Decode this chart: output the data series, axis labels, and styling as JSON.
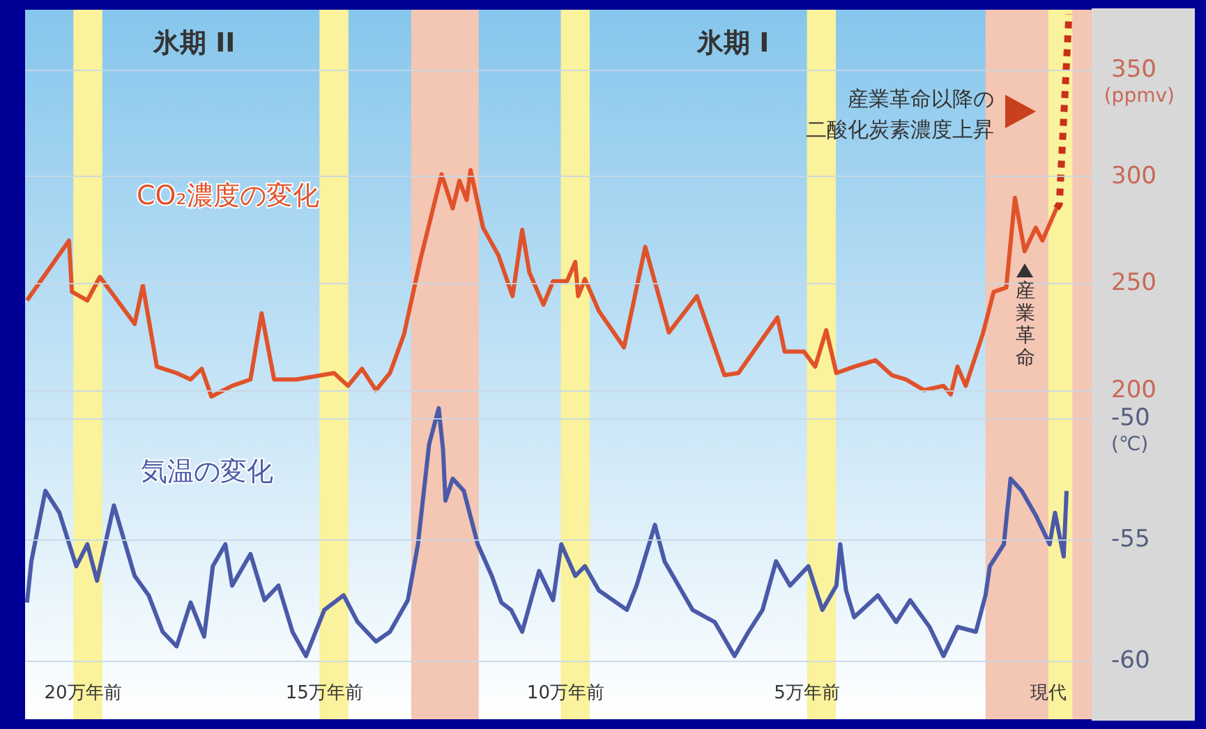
{
  "chart_data": {
    "type": "line",
    "ylabel": "(ppmv)",
    "y2label": "(℃)",
    "xlim": [
      21.2,
      -0.9
    ],
    "xticks": [
      {
        "value": 20,
        "label": "20万年前"
      },
      {
        "value": 15,
        "label": "15万年前"
      },
      {
        "value": 10,
        "label": "10万年前"
      },
      {
        "value": 5,
        "label": "5万年前"
      },
      {
        "value": 0,
        "label": "現代"
      }
    ],
    "ylim": [
      46,
      378
    ],
    "yticks": [
      200,
      250,
      300,
      350
    ],
    "y2lim": [
      -62.4,
      -33.2
    ],
    "y2ticks": [
      -60,
      -55,
      -50
    ],
    "grid": "y",
    "marker": "none",
    "line_style": "solid",
    "series": [
      {
        "name": "CO₂濃度の変化",
        "color": "#e0522a",
        "x": [
          21.16,
          20.29,
          20.23,
          19.91,
          19.65,
          18.93,
          18.76,
          18.47,
          18.06,
          17.77,
          17.54,
          17.34,
          16.91,
          16.53,
          16.3,
          16.04,
          15.58,
          14.8,
          14.51,
          14.22,
          13.93,
          13.64,
          13.35,
          13.01,
          12.57,
          12.34,
          12.2,
          12.05,
          11.97,
          11.71,
          11.39,
          11.1,
          10.9,
          10.75,
          10.46,
          10.26,
          9.97,
          9.8,
          9.74,
          9.6,
          9.31,
          8.79,
          8.35,
          7.86,
          7.28,
          6.71,
          6.42,
          5.61,
          5.46,
          5.06,
          4.83,
          4.6,
          4.39,
          4.02,
          3.58,
          3.24,
          2.95,
          2.57,
          2.17,
          2.02,
          1.88,
          1.71,
          1.36,
          1.13,
          0.87,
          0.69,
          0.49,
          0.26,
          0.12,
          -0.17
        ],
        "values": [
          242,
          270,
          246,
          242,
          253,
          231,
          249,
          211,
          208,
          205,
          210,
          197,
          202,
          205,
          236,
          205,
          205,
          208,
          202,
          210,
          200,
          208,
          226,
          261,
          301,
          285,
          298,
          289,
          303,
          276,
          263,
          244,
          275,
          255,
          240,
          251,
          251,
          260,
          244,
          252,
          237,
          220,
          267,
          227,
          244,
          207,
          208,
          234,
          218,
          218,
          211,
          228,
          208,
          211,
          214,
          207,
          205,
          200,
          202,
          198,
          211,
          202,
          226,
          246,
          248,
          290,
          265,
          276,
          270,
          285
        ]
      },
      {
        "color": "#c8301a",
        "line_style": "dotted",
        "x": [
          -0.17,
          -0.23,
          -0.43
        ],
        "values": [
          285,
          287,
          376
        ]
      },
      {
        "name": "気温の変化",
        "color": "#4a5aa8",
        "axis": "y2",
        "x": [
          21.16,
          21.07,
          20.78,
          20.49,
          20.14,
          19.91,
          19.71,
          19.36,
          18.93,
          18.64,
          18.35,
          18.06,
          17.77,
          17.49,
          17.31,
          17.05,
          16.91,
          16.53,
          16.24,
          15.95,
          15.66,
          15.38,
          15.0,
          14.6,
          14.31,
          13.93,
          13.64,
          13.27,
          13.06,
          12.83,
          12.63,
          12.54,
          12.49,
          12.34,
          12.11,
          11.82,
          11.53,
          11.33,
          11.13,
          10.9,
          10.55,
          10.26,
          10.09,
          9.8,
          9.6,
          9.31,
          8.73,
          8.53,
          8.15,
          7.95,
          7.37,
          6.91,
          6.5,
          6.21,
          5.92,
          5.64,
          5.35,
          4.97,
          4.68,
          4.39,
          4.31,
          4.19,
          4.02,
          3.53,
          3.15,
          2.86,
          2.46,
          2.17,
          1.88,
          1.5,
          1.3,
          1.21,
          0.92,
          0.78,
          0.55,
          0.26,
          -0.03,
          -0.14,
          -0.32,
          -0.38
        ],
        "values": [
          -57.6,
          -55.9,
          -53.0,
          -53.9,
          -56.1,
          -55.2,
          -56.7,
          -53.6,
          -56.5,
          -57.3,
          -58.8,
          -59.4,
          -57.6,
          -59.0,
          -56.1,
          -55.2,
          -56.9,
          -55.6,
          -57.5,
          -56.9,
          -58.8,
          -59.8,
          -57.9,
          -57.3,
          -58.4,
          -59.2,
          -58.8,
          -57.5,
          -55.2,
          -51.1,
          -49.6,
          -51.3,
          -53.4,
          -52.5,
          -53.0,
          -55.2,
          -56.5,
          -57.6,
          -57.9,
          -58.8,
          -56.3,
          -57.5,
          -55.2,
          -56.5,
          -56.1,
          -57.1,
          -57.9,
          -56.9,
          -54.4,
          -55.9,
          -57.9,
          -58.4,
          -59.8,
          -58.8,
          -57.9,
          -55.9,
          -56.9,
          -56.1,
          -57.9,
          -56.9,
          -55.2,
          -57.1,
          -58.2,
          -57.3,
          -58.4,
          -57.5,
          -58.6,
          -59.8,
          -58.6,
          -58.8,
          -57.3,
          -56.1,
          -55.2,
          -52.5,
          -53.0,
          -54.0,
          -55.2,
          -53.9,
          -55.7,
          -53.0
        ]
      }
    ],
    "bands": [
      {
        "axis": "x",
        "from": 13.2,
        "to": 11.8,
        "color": "#f4c6b4"
      },
      {
        "axis": "x",
        "from": 1.3,
        "to": -0.9,
        "color": "#f4c6b4"
      },
      {
        "axis": "x",
        "from": 20.2,
        "to": 19.6,
        "color": "#faf29c"
      },
      {
        "axis": "x",
        "from": 15.1,
        "to": 14.5,
        "color": "#faf29c"
      },
      {
        "axis": "x",
        "from": 10.1,
        "to": 9.5,
        "color": "#faf29c"
      },
      {
        "axis": "x",
        "from": 5.0,
        "to": 4.4,
        "color": "#faf29c"
      },
      {
        "axis": "x",
        "from": 0.0,
        "to": -0.5,
        "color": "#faf29c"
      }
    ],
    "annotations": [
      "氷期 II",
      "氷期 I",
      "産業革命以降の",
      "二酸化炭素濃度上昇",
      {
        "text": "産業革命",
        "x": 0.45,
        "y": 262
      }
    ]
  }
}
